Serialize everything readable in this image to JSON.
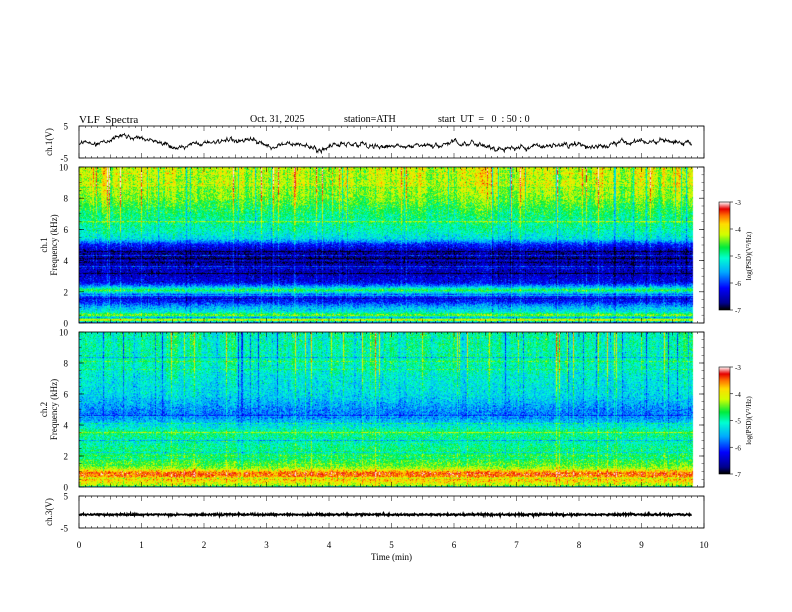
{
  "header": {
    "title": "VLF  Spectra",
    "date": "Oct. 31, 2025",
    "station": "station=ATH",
    "start": "start  UT  =   0  : 50 : 0"
  },
  "chart_data": [
    {
      "type": "line",
      "name": "ch1-voltage",
      "ylabel": "ch.1(V)",
      "ylim": [
        -5,
        5
      ],
      "yticks": [
        "5",
        "-5"
      ],
      "xlim": [
        0,
        10
      ],
      "trace_end_min": 9.8,
      "description_values": {
        "mean": -0.6,
        "fluctuation": 2.5
      }
    },
    {
      "type": "heatmap",
      "name": "ch1-spectrogram",
      "ylabel": "ch.1\nFrequency (kHz)",
      "ylim": [
        0,
        10
      ],
      "yticks": [
        "0",
        "2",
        "4",
        "6",
        "8",
        "10"
      ],
      "xlim": [
        0,
        10
      ],
      "trace_end_min": 9.8,
      "colorbar": {
        "label": "log(PSD)(V²/Hz)",
        "ticks": [
          "-3",
          "-4",
          "-5",
          "-6",
          "-7"
        ],
        "range": [
          -7,
          -3
        ]
      },
      "profile_kHz_to_logPSD": [
        [
          0.0,
          -6.2
        ],
        [
          0.2,
          -3.8
        ],
        [
          0.35,
          -5.6
        ],
        [
          0.5,
          -4.3
        ],
        [
          0.7,
          -5.2
        ],
        [
          1.0,
          -5.5
        ],
        [
          1.4,
          -6.2
        ],
        [
          1.8,
          -6.0
        ],
        [
          2.1,
          -4.6
        ],
        [
          2.3,
          -5.5
        ],
        [
          2.6,
          -6.3
        ],
        [
          3.2,
          -6.5
        ],
        [
          3.8,
          -6.6
        ],
        [
          4.4,
          -6.7
        ],
        [
          5.0,
          -6.2
        ],
        [
          5.4,
          -5.3
        ],
        [
          6.0,
          -5.0
        ],
        [
          7.0,
          -4.8
        ],
        [
          8.0,
          -4.4
        ],
        [
          9.0,
          -4.2
        ],
        [
          10.0,
          -4.2
        ]
      ]
    },
    {
      "type": "heatmap",
      "name": "ch2-spectrogram",
      "ylabel": "ch.2\nFrequency (kHz)",
      "ylim": [
        0,
        10
      ],
      "yticks": [
        "0",
        "2",
        "4",
        "6",
        "8",
        "10"
      ],
      "xlim": [
        0,
        10
      ],
      "trace_end_min": 9.8,
      "colorbar": {
        "label": "log(PSD)(V²/Hz)",
        "ticks": [
          "-3",
          "-4",
          "-5",
          "-6",
          "-7"
        ],
        "range": [
          -7,
          -3
        ]
      },
      "profile_kHz_to_logPSD": [
        [
          0.0,
          -4.4
        ],
        [
          0.3,
          -4.0
        ],
        [
          0.6,
          -3.6
        ],
        [
          0.9,
          -3.4
        ],
        [
          1.2,
          -4.3
        ],
        [
          1.6,
          -4.6
        ],
        [
          2.0,
          -4.8
        ],
        [
          2.5,
          -4.9
        ],
        [
          3.0,
          -5.0
        ],
        [
          3.5,
          -4.8
        ],
        [
          4.0,
          -5.3
        ],
        [
          4.6,
          -5.8
        ],
        [
          5.0,
          -5.7
        ],
        [
          6.0,
          -5.3
        ],
        [
          7.0,
          -5.2
        ],
        [
          8.0,
          -5.0
        ],
        [
          9.0,
          -5.0
        ],
        [
          10.0,
          -5.0
        ]
      ]
    },
    {
      "type": "line",
      "name": "ch3-voltage",
      "ylabel": "ch.3(V)",
      "ylim": [
        -5,
        5
      ],
      "yticks": [
        "5",
        "-5"
      ],
      "xlim": [
        0,
        10
      ],
      "trace_end_min": 9.8,
      "description_values": {
        "mean": -0.8,
        "fluctuation": 0.3
      }
    }
  ],
  "xaxis": {
    "label": "Time  (min)",
    "ticks": [
      "0",
      "1",
      "2",
      "3",
      "4",
      "5",
      "6",
      "7",
      "8",
      "9",
      "10"
    ]
  }
}
